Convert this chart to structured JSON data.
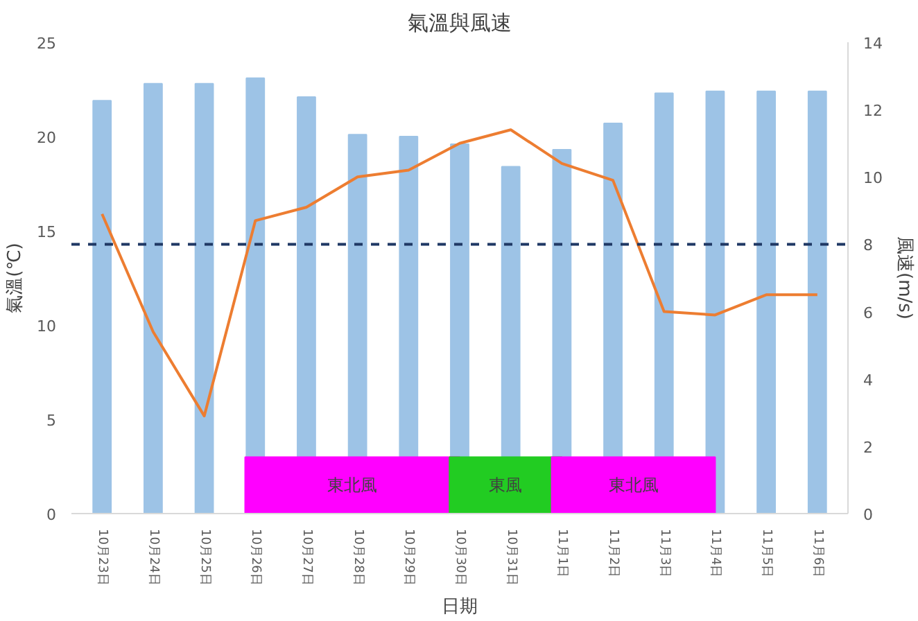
{
  "chart_data": {
    "type": "bar",
    "title": "氣溫與風速",
    "xlabel": "日期",
    "ylabel": "氣溫(℃)",
    "y2label": "風速(m/s)",
    "categories": [
      "10月23日",
      "10月24日",
      "10月25日",
      "10月26日",
      "10月27日",
      "10月28日",
      "10月29日",
      "10月30日",
      "10月31日",
      "11月1日",
      "11月2日",
      "11月3日",
      "11月4日",
      "11月5日",
      "11月6日"
    ],
    "series": [
      {
        "color": "#9dc3e6",
        "values": [
          21.9,
          22.8,
          22.8,
          23.1,
          22.1,
          20.1,
          20.0,
          19.6,
          18.4,
          19.3,
          20.7,
          22.3,
          22.4,
          22.4,
          22.4
        ]
      },
      {
        "type": "line",
        "axis": "y2",
        "color": "#ed7d31",
        "values": [
          8.9,
          5.4,
          2.9,
          8.7,
          9.1,
          10.0,
          10.2,
          11.0,
          11.4,
          10.4,
          9.9,
          6.0,
          5.9,
          6.5,
          6.5
        ]
      }
    ],
    "ylim": [
      0,
      25
    ],
    "yticks": [
      0,
      5,
      10,
      15,
      20,
      25
    ],
    "y2lim": [
      0,
      14
    ],
    "y2ticks": [
      0,
      2,
      4,
      6,
      8,
      10,
      12,
      14
    ],
    "ref_lines": [
      {
        "axis": "y2",
        "value": 8,
        "color": "#1f3864",
        "line_style": "dashed"
      }
    ],
    "bands": [
      {
        "axis": "x",
        "from": "10月26日",
        "to": "10月30日",
        "label": "東北風",
        "color": "#ff00ff"
      },
      {
        "axis": "x",
        "from": "10月30日",
        "to": "11月1日",
        "label": "東風",
        "color": "#22cc22"
      },
      {
        "axis": "x",
        "from": "11月1日",
        "to": "11月4日",
        "label": "東北風",
        "color": "#ff00ff"
      }
    ],
    "grid": false,
    "marker": "none",
    "line_style": "solid"
  }
}
